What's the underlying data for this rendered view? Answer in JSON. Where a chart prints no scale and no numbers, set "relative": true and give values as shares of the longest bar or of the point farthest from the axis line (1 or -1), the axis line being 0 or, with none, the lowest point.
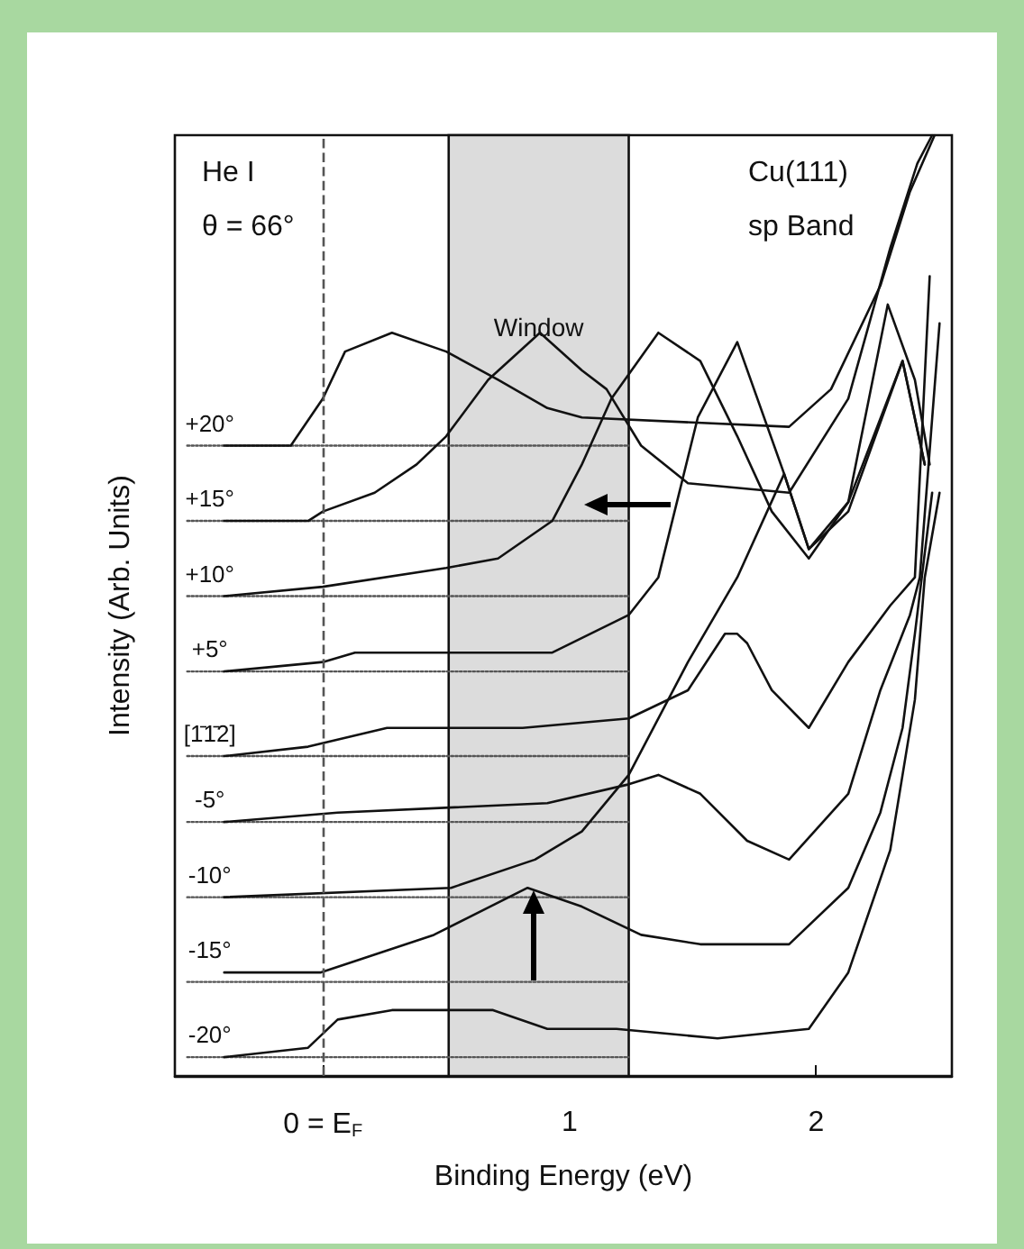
{
  "chart_data": {
    "type": "line",
    "relative": true,
    "xlabel": "Binding Energy (eV)",
    "ylabel": "Intensity (Arb. Units)",
    "xlim": [
      -0.6,
      2.55
    ],
    "xticks": [
      {
        "value": 0,
        "label": "0 = E$_{F}$"
      },
      1,
      2
    ],
    "grid": false,
    "legend": false,
    "marker": "none",
    "line_style": "solid",
    "annotations": [
      "He I",
      "θ = 66°",
      "Cu(111)",
      "sp Band"
    ],
    "ref_lines": [
      {
        "axis": "x",
        "value": 0,
        "label": null,
        "color": "#555555",
        "line_style": "dashed"
      }
    ],
    "bands": [
      {
        "axis": "x",
        "from": 0.51,
        "to": 1.24,
        "label": "Window",
        "color": "#dcdcdc"
      }
    ],
    "series": [
      {
        "name": "+20°",
        "color": "#111111",
        "x": [
          -0.4,
          -0.13,
          0,
          0.09,
          0.28,
          0.5,
          0.71,
          0.91,
          1.05,
          1.89,
          2.06,
          2.26,
          2.38,
          2.48
        ],
        "values": [
          0.67,
          0.67,
          0.72,
          0.77,
          0.79,
          0.77,
          0.74,
          0.71,
          0.7,
          0.69,
          0.73,
          0.84,
          0.94,
          1.0
        ]
      },
      {
        "name": "+15°",
        "color": "#111111",
        "x": [
          -0.4,
          -0.06,
          0,
          0.21,
          0.38,
          0.5,
          0.67,
          0.88,
          1.05,
          1.15,
          1.29,
          1.48,
          1.89,
          2.13,
          2.3,
          2.41,
          2.47
        ],
        "values": [
          0.59,
          0.59,
          0.6,
          0.62,
          0.65,
          0.68,
          0.74,
          0.79,
          0.75,
          0.73,
          0.67,
          0.63,
          0.62,
          0.72,
          0.88,
          0.97,
          1.0
        ]
      },
      {
        "name": "+10°",
        "color": "#111111",
        "x": [
          -0.4,
          0,
          0.5,
          0.71,
          0.93,
          1.05,
          1.17,
          1.36,
          1.53,
          1.68,
          1.82,
          1.97,
          2.13,
          2.29,
          2.4,
          2.46
        ],
        "values": [
          0.51,
          0.52,
          0.54,
          0.55,
          0.59,
          0.65,
          0.72,
          0.79,
          0.76,
          0.68,
          0.6,
          0.55,
          0.61,
          0.82,
          0.74,
          0.65
        ]
      },
      {
        "name": "+5°",
        "color": "#111111",
        "x": [
          -0.4,
          0,
          0.13,
          0.52,
          0.93,
          1.24,
          1.36,
          1.52,
          1.68,
          1.87,
          1.97,
          2.13,
          2.35,
          2.44
        ],
        "values": [
          0.43,
          0.44,
          0.45,
          0.45,
          0.45,
          0.49,
          0.53,
          0.7,
          0.78,
          0.64,
          0.56,
          0.6,
          0.76,
          0.65
        ]
      },
      {
        "name": "[1̄1̄2]",
        "color": "#111111",
        "x": [
          -0.4,
          -0.06,
          0.26,
          0.81,
          1.24,
          1.48,
          1.63,
          1.68,
          1.72,
          1.82,
          1.97,
          2.13,
          2.3,
          2.4,
          2.46
        ],
        "values": [
          0.34,
          0.35,
          0.37,
          0.37,
          0.38,
          0.41,
          0.47,
          0.47,
          0.46,
          0.41,
          0.37,
          0.44,
          0.5,
          0.53,
          0.85
        ]
      },
      {
        "name": "-5°",
        "color": "#111111",
        "x": [
          -0.4,
          0.06,
          0.91,
          1.24,
          1.36,
          1.53,
          1.72,
          1.89,
          2.13,
          2.26,
          2.38,
          2.42,
          2.5
        ],
        "values": [
          0.27,
          0.28,
          0.29,
          0.31,
          0.32,
          0.3,
          0.25,
          0.23,
          0.3,
          0.41,
          0.49,
          0.53,
          0.8
        ]
      },
      {
        "name": "-10°",
        "color": "#111111",
        "x": [
          -0.4,
          0.52,
          0.86,
          1.05,
          1.24,
          1.48,
          1.68,
          1.87,
          1.97,
          2.13,
          2.35,
          2.44
        ],
        "values": [
          0.19,
          0.2,
          0.23,
          0.26,
          0.32,
          0.44,
          0.53,
          0.64,
          0.56,
          0.61,
          0.76,
          0.65
        ]
      },
      {
        "name": "-15°",
        "color": "#111111",
        "x": [
          -0.4,
          -0.01,
          0.45,
          0.83,
          1.05,
          1.29,
          1.53,
          1.89,
          2.13,
          2.26,
          2.35,
          2.4,
          2.47
        ],
        "values": [
          0.11,
          0.11,
          0.15,
          0.2,
          0.18,
          0.15,
          0.14,
          0.14,
          0.2,
          0.28,
          0.37,
          0.47,
          0.62
        ]
      },
      {
        "name": "-20°",
        "color": "#111111",
        "x": [
          -0.4,
          -0.06,
          0.06,
          0.28,
          0.69,
          0.91,
          1.19,
          1.6,
          1.97,
          2.13,
          2.3,
          2.4,
          2.44,
          2.5
        ],
        "values": [
          0.02,
          0.03,
          0.06,
          0.07,
          0.07,
          0.05,
          0.05,
          0.04,
          0.05,
          0.11,
          0.24,
          0.4,
          0.53,
          0.62
        ]
      },
      {
        "color": "#555555",
        "line_style": "dotted",
        "x": [
          -0.55,
          1.24
        ],
        "values": [
          0.67,
          0.67
        ]
      },
      {
        "color": "#555555",
        "line_style": "dotted",
        "x": [
          -0.55,
          1.24
        ],
        "values": [
          0.59,
          0.59
        ]
      },
      {
        "color": "#555555",
        "line_style": "dotted",
        "x": [
          -0.55,
          1.24
        ],
        "values": [
          0.51,
          0.51
        ]
      },
      {
        "color": "#555555",
        "line_style": "dotted",
        "x": [
          -0.55,
          1.24
        ],
        "values": [
          0.43,
          0.43
        ]
      },
      {
        "color": "#555555",
        "line_style": "dotted",
        "x": [
          -0.55,
          1.24
        ],
        "values": [
          0.34,
          0.34
        ]
      },
      {
        "color": "#555555",
        "line_style": "dotted",
        "x": [
          -0.55,
          1.24
        ],
        "values": [
          0.27,
          0.27
        ]
      },
      {
        "color": "#555555",
        "line_style": "dotted",
        "x": [
          -0.55,
          1.24
        ],
        "values": [
          0.19,
          0.19
        ]
      },
      {
        "color": "#555555",
        "line_style": "dotted",
        "x": [
          -0.55,
          1.24
        ],
        "values": [
          0.1,
          0.1
        ]
      },
      {
        "color": "#555555",
        "line_style": "dotted",
        "x": [
          -0.55,
          1.24
        ],
        "values": [
          0.02,
          0.02
        ]
      }
    ]
  }
}
